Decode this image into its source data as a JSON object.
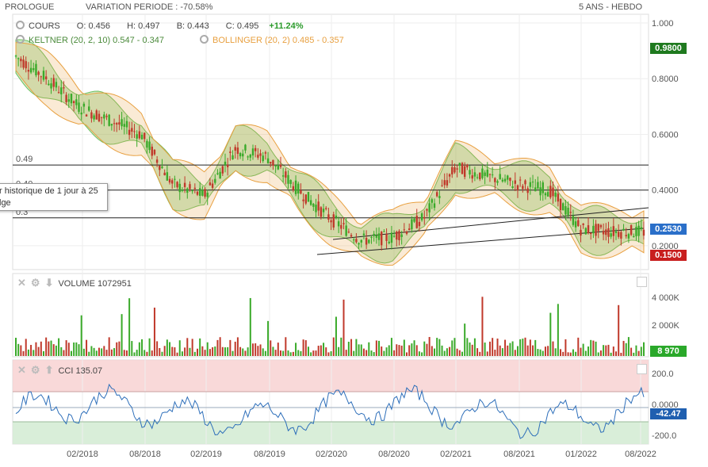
{
  "header": {
    "instrument": "PROLOGUE",
    "variation": "VARIATION PERIODE : -70.58%",
    "period": "5 ANS - HEBDO"
  },
  "legend": {
    "cours_label": "COURS",
    "o": "O: 0.456",
    "h": "H: 0.497",
    "b": "B: 0.443",
    "c": "C: 0.495",
    "chg": "+11.24%",
    "keltner": "KELTNER (20, 2, 10) 0.547 - 0.347",
    "bollinger": "BOLLINGER (20, 2) 0.485 - 0.357"
  },
  "colors": {
    "up": "#3aaa2a",
    "down": "#c0392b",
    "keltner": "#6fbf5f",
    "bollinger": "#e8a040",
    "cci_line": "#2e6fba"
  },
  "tooltip": {
    "line1": "r historique de 1 jour à 25",
    "line2": "lge"
  },
  "hlines": {
    "label_049": "0.49",
    "label_040": "0.40",
    "label_030": "0.3"
  },
  "tags": {
    "top": "0.9800",
    "last": "0.2530",
    "low": "0.1500",
    "volume": "8 970",
    "cci": "-42.47"
  },
  "volume_pane": {
    "title": "VOLUME",
    "value": "1072951",
    "ticks": [
      "4 000K",
      "2 000K"
    ]
  },
  "cci_pane": {
    "title": "CCI",
    "value": "135.07",
    "ticks": [
      "200.0",
      "0.0000",
      "-200.0"
    ]
  },
  "x_ticks": [
    "02/2018",
    "08/2018",
    "02/2019",
    "08/2019",
    "02/2020",
    "08/2020",
    "02/2021",
    "08/2021",
    "01/2022",
    "08/2022"
  ],
  "chart_data": {
    "type": "line",
    "x": [
      "2017-08",
      "2017-11",
      "2018-02",
      "2018-05",
      "2018-08",
      "2018-11",
      "2019-02",
      "2019-05",
      "2019-08",
      "2019-11",
      "2020-02",
      "2020-05",
      "2020-08",
      "2020-11",
      "2021-02",
      "2021-05",
      "2021-08",
      "2021-11",
      "2022-02",
      "2022-05",
      "2022-08"
    ],
    "series": [
      {
        "values": [
          0.88,
          0.8,
          0.7,
          0.65,
          0.6,
          0.42,
          0.38,
          0.55,
          0.52,
          0.4,
          0.3,
          0.22,
          0.23,
          0.3,
          0.48,
          0.45,
          0.42,
          0.4,
          0.26,
          0.25,
          0.25
        ]
      }
    ],
    "y_ticks": [
      "1.000",
      "0.8000",
      "0.6000",
      "0.4000",
      "0.2000"
    ],
    "ylim": [
      0.12,
      1.02
    ],
    "grid": true
  }
}
